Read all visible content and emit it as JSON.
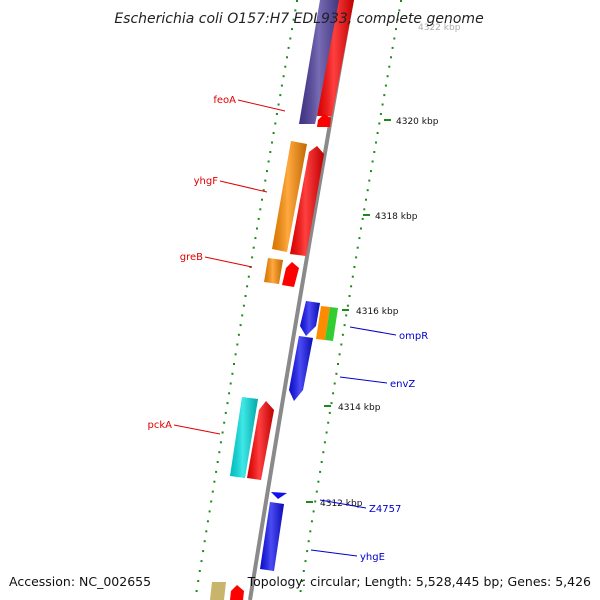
{
  "title": "Escherichia coli O157:H7 EDL933, complete genome",
  "footer": {
    "accession": "Accession: NC_002655",
    "summary": "Topology: circular; Length: 5,528,445 bp; Genes: 5,426"
  },
  "colors": {
    "backbone": "#8a8a8a",
    "tick_mark": "#1e8a1e",
    "label_left": "#e00000",
    "label_right": "#0000cc",
    "feature_purple": "#4a3a9a",
    "feature_red": "#ff0000",
    "feature_orange": "#ff8c00",
    "feature_blue": "#1010f0",
    "feature_cyan": "#00e0e0",
    "feature_green": "#33cc33",
    "feature_khaki": "#c8b46a"
  },
  "scale_labels": [
    "4322 kbp",
    "4320 kbp",
    "4318 kbp",
    "4316 kbp",
    "4314 kbp",
    "4312 kbp"
  ],
  "genes_left": [
    "feoA",
    "yhgF",
    "greB",
    "pckA"
  ],
  "genes_right": [
    "ompR",
    "envZ",
    "Z4757",
    "yhgE"
  ]
}
